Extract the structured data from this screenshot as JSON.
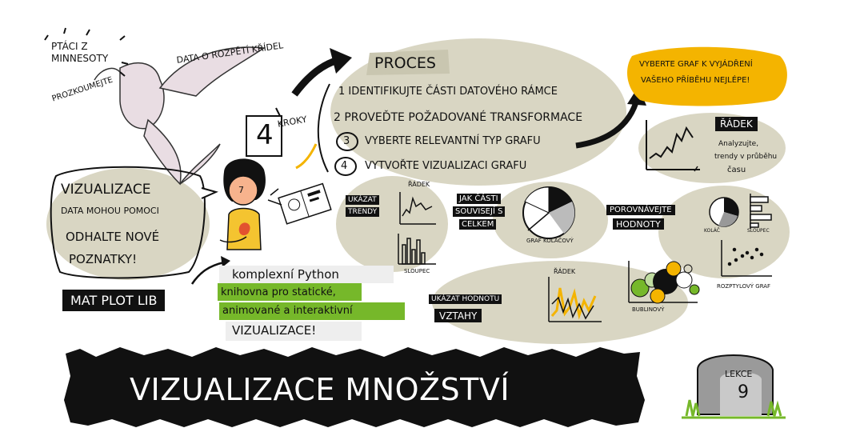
{
  "bird": {
    "label_line1": "PTÁCI Z",
    "label_line2": "MINNESOTY",
    "explore": "PROZKOUMEJTE",
    "wingspan": "DATA O ROZPĚTÍ KŘÍDEL"
  },
  "steps": {
    "count": "4",
    "kroky": "KROKY",
    "title": "PROCES",
    "items": [
      {
        "text": "1 IDENTIFIKUJTE ČÁSTI DATOVÉHO RÁMCE"
      },
      {
        "text": "2 PROVEĎTE POŽADOVANÉ TRANSFORMACE"
      },
      {
        "num": "3",
        "text": "VYBERTE RELEVANTNÍ TYP GRAFU"
      },
      {
        "num": "4",
        "text": "VYTVOŘTE VIZUALIZACI GRAFU"
      }
    ]
  },
  "choose": {
    "line1": "VYBERTE GRAF K VYJÁDŘENÍ",
    "line2": "VAŠEHO PŘÍBĚHU NEJLÉPE!"
  },
  "line_panel": {
    "title": "ŘÁDEK",
    "desc1": "Analyzujte,",
    "desc2": "trendy v průběhu",
    "desc3": "času"
  },
  "viz_bubble": {
    "title": "VIZUALIZACE",
    "line1": "DATA MOHOU POMOCI",
    "line2": "ODHALTE NOVÉ",
    "line3": "POZNATKY!"
  },
  "face_number": "7",
  "trends": {
    "label1": "UKÁZAT",
    "label2": "TRENDY",
    "radek": "ŘÁDEK",
    "sloupec": "SLOUPEC"
  },
  "parts": {
    "label1": "JAK ČÁSTI",
    "label2": "SOUVISEJÍ S",
    "label3": "CELKEM",
    "pie": "GRAF KOLÁČOVÝ"
  },
  "compare": {
    "label1": "POROVNÁVEJTE",
    "label2": "HODNOTY",
    "kolac": "KOLÁČ",
    "sloupec": "SLOUPEC",
    "scatter": "ROZPTYLOVÝ GRAF"
  },
  "relations": {
    "label1": "UKÁZAT HODNOTU",
    "label2": "VZTAHY",
    "radek": "ŘÁDEK",
    "bubble": "BUBLINOVÝ"
  },
  "matplotlib": {
    "name": "MAT PLOT LIB",
    "desc1": "komplexní Python",
    "desc2": "knihovna pro statické,",
    "desc3": "animované a interaktivní",
    "desc4": "VIZUALIZACE!"
  },
  "banner": {
    "title": "VIZUALIZACE MNOŽSTVÍ"
  },
  "lesson": {
    "label": "LEKCE",
    "number": "9"
  },
  "colors": {
    "olive": "#d9d6c3",
    "gold": "#f4b400",
    "green": "#76b82a",
    "black": "#111111"
  }
}
